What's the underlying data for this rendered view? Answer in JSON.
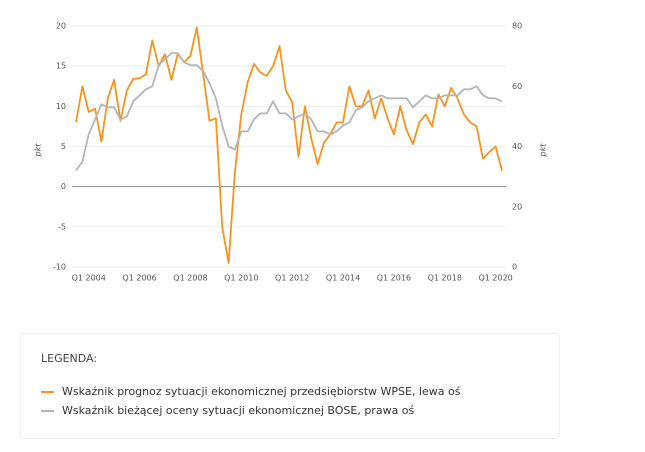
{
  "chart_data": {
    "type": "line",
    "y_label": "pkt",
    "y2_label": "pkt",
    "categories": [
      null,
      null,
      "Q1 2004",
      null,
      null,
      null,
      null,
      null,
      null,
      null,
      "Q1 2006",
      null,
      null,
      null,
      null,
      null,
      null,
      null,
      "Q1 2008",
      null,
      null,
      null,
      null,
      null,
      null,
      null,
      "Q1 2010",
      null,
      null,
      null,
      null,
      null,
      null,
      null,
      "Q1 2012",
      null,
      null,
      null,
      null,
      null,
      null,
      null,
      "Q1 2014",
      null,
      null,
      null,
      null,
      null,
      null,
      null,
      "Q1 2016",
      null,
      null,
      null,
      null,
      null,
      null,
      null,
      "Q1 2018",
      null,
      null,
      null,
      null,
      null,
      null,
      null,
      "Q1 2020",
      null
    ],
    "series": [
      {
        "name": "Wskaźnik prognoz sytuacji ekonomicznej przedsiębiorstw WPSE, lewa oś",
        "color": "#f7941d",
        "axis": "y",
        "values": [
          8,
          12.5,
          9.3,
          9.7,
          5.6,
          11,
          13.3,
          8.2,
          12,
          13.4,
          13.5,
          14,
          18.2,
          15,
          16.5,
          13.3,
          16.5,
          15.5,
          16.3,
          19.8,
          14,
          8.2,
          8.5,
          -5,
          -9.5,
          2,
          9,
          13,
          15.3,
          14.2,
          13.8,
          15,
          17.5,
          12,
          10.5,
          3.7,
          10,
          6,
          2.8,
          5.5,
          6.5,
          8,
          8,
          12.5,
          10,
          10,
          12,
          8.5,
          11,
          8.5,
          6.5,
          10,
          7,
          5.3,
          8,
          9,
          7.5,
          11.5,
          10,
          12.3,
          11,
          9,
          8,
          7.5,
          3.5,
          4.3,
          5,
          2
        ]
      },
      {
        "name": "Wskaźnik bieżącej oceny sytuacji ekonomicznej BOSE, prawa oś",
        "color": "#b3b6b9",
        "axis": "y2",
        "values": [
          32,
          35,
          44,
          49,
          54,
          53,
          53,
          49,
          50,
          55,
          57,
          59,
          60,
          67,
          69,
          71,
          71,
          68,
          67,
          67,
          65,
          61,
          56,
          47,
          40,
          39,
          45,
          45,
          49,
          51,
          51,
          55,
          51,
          51,
          49,
          50,
          51,
          49,
          45,
          45,
          44,
          45,
          47,
          48,
          52,
          53,
          55,
          56,
          57,
          56,
          56,
          56,
          56,
          53,
          55,
          57,
          56,
          56,
          57,
          57,
          57,
          59,
          59,
          60,
          57,
          56,
          56,
          55
        ]
      }
    ],
    "ylim": [
      -10,
      20
    ],
    "yticks": [
      -10,
      -5,
      0,
      5,
      10,
      15,
      20
    ],
    "y2lim": [
      0,
      80
    ],
    "y2ticks": [
      0,
      20,
      40,
      60,
      80
    ],
    "grid": true,
    "legend_title": "LEGENDA:"
  }
}
